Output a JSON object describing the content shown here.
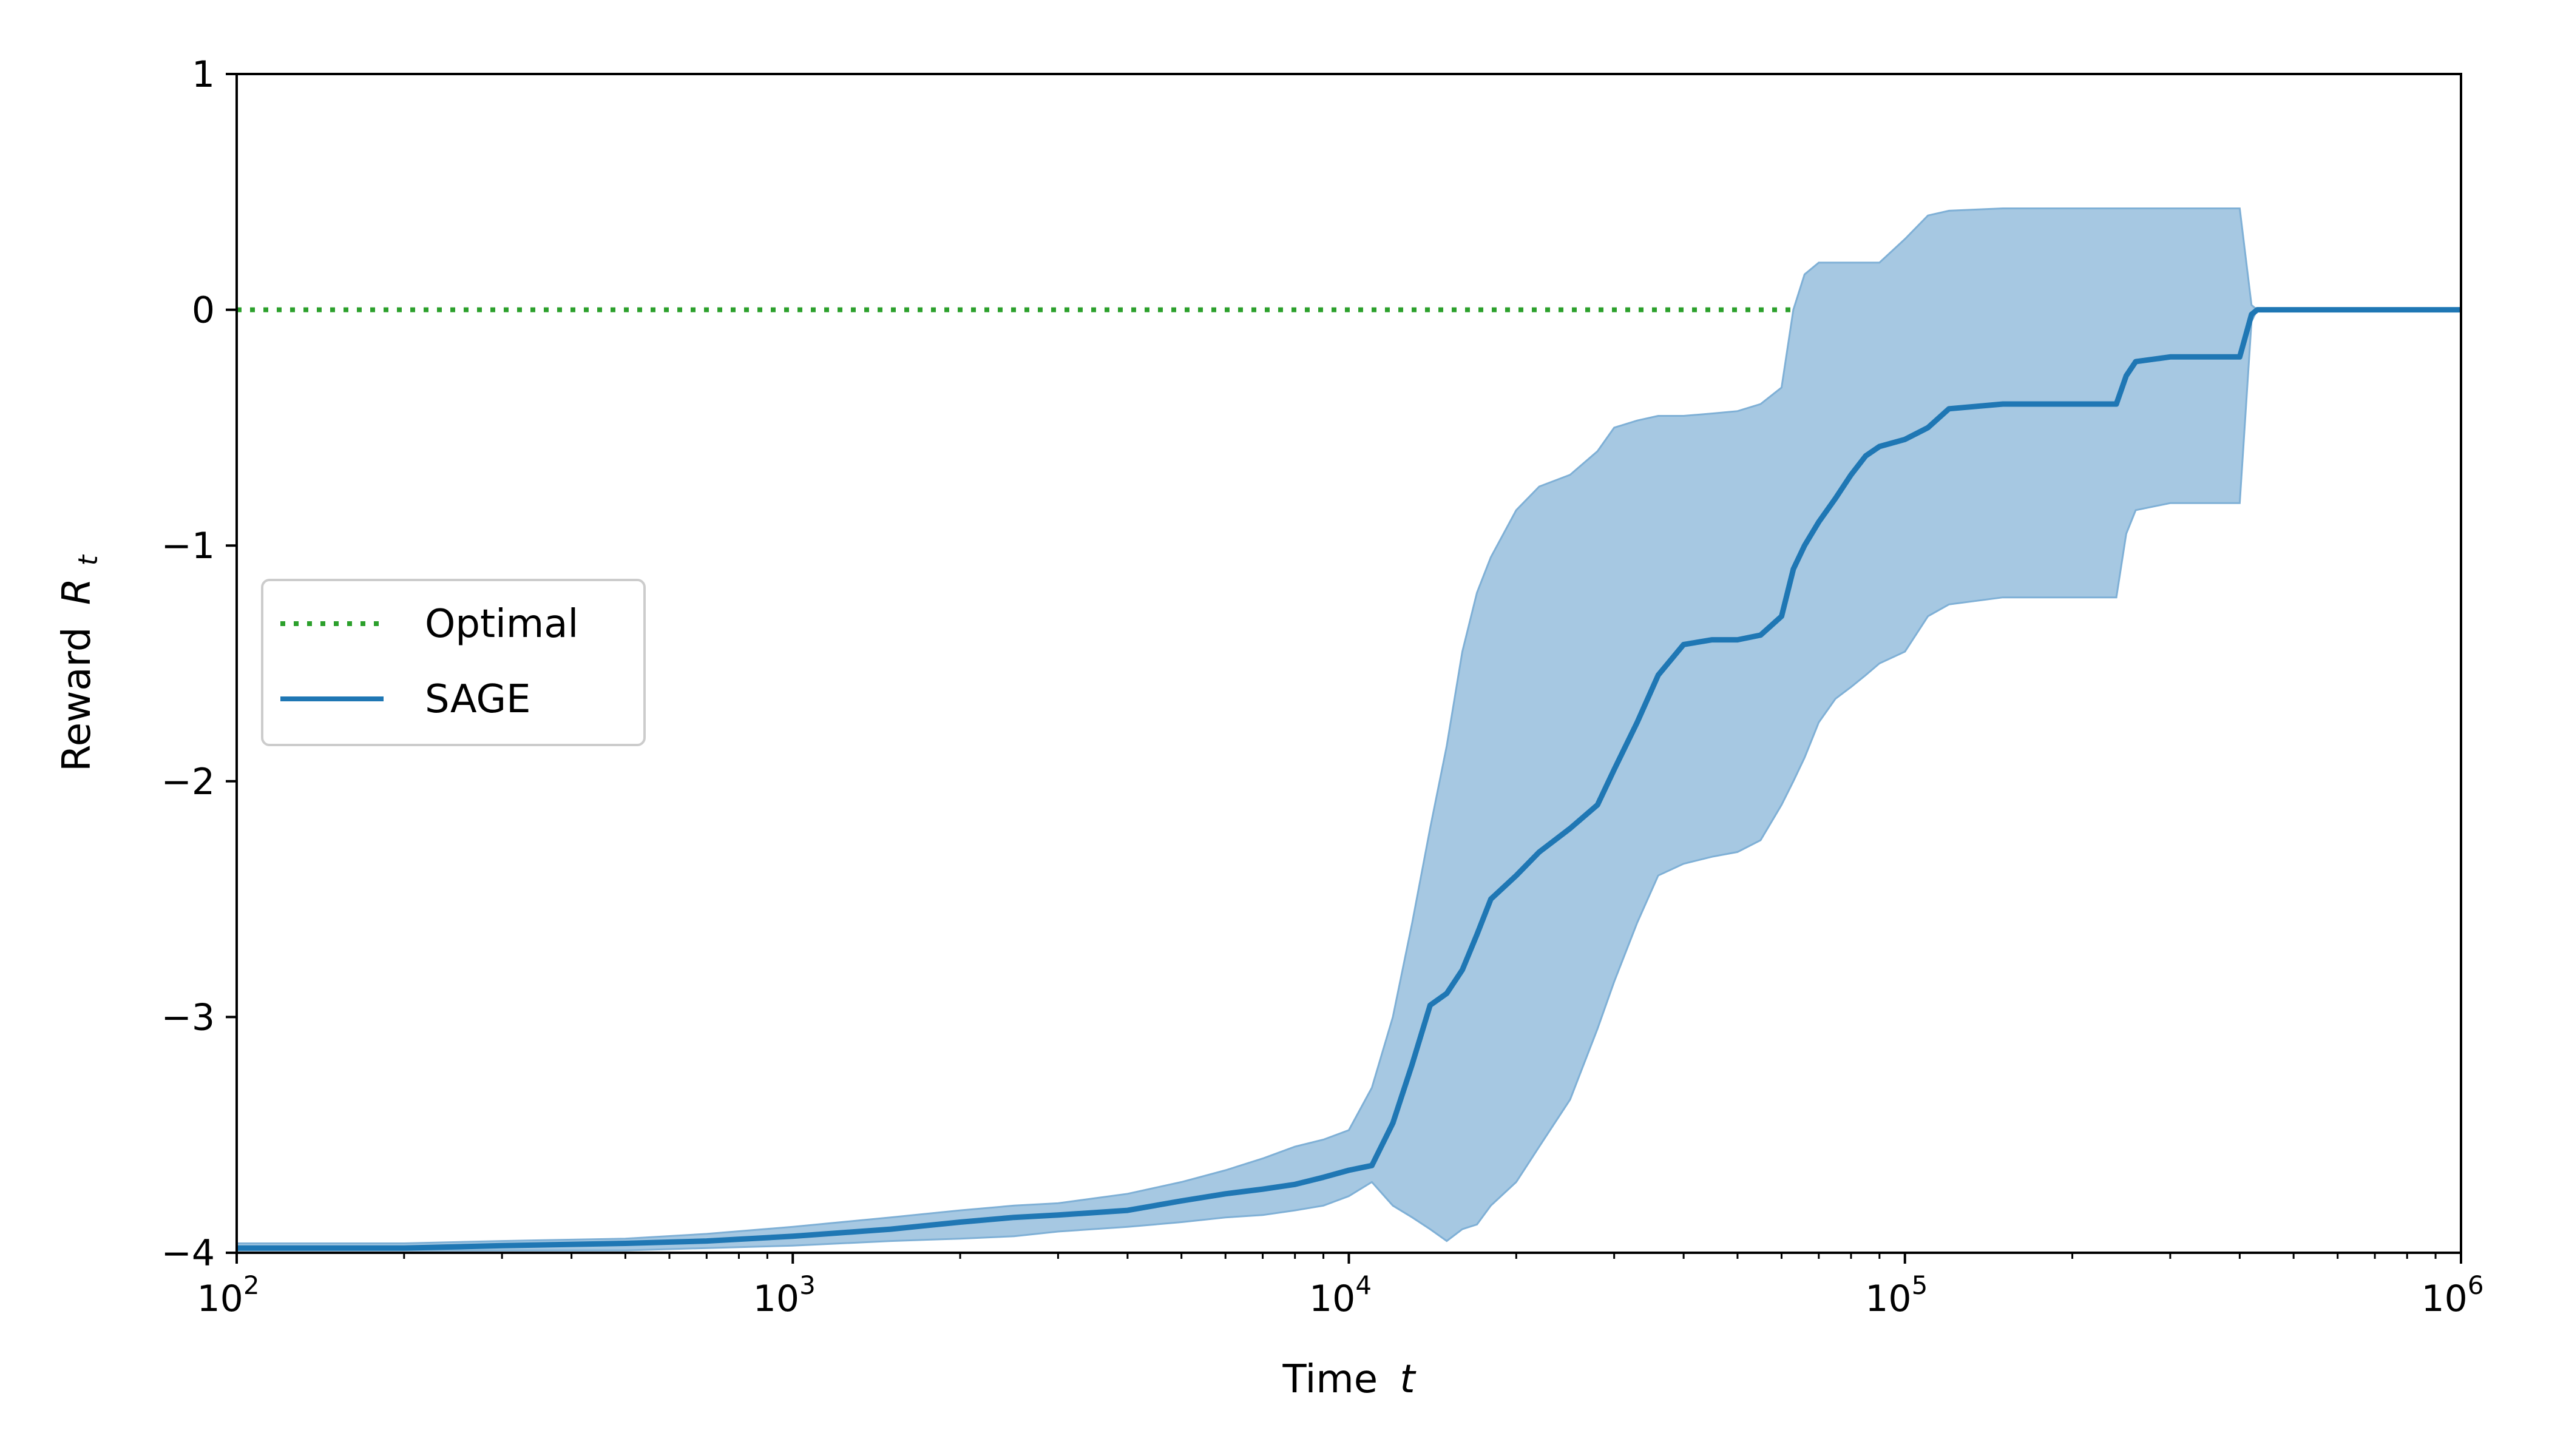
{
  "chart_data": {
    "type": "line",
    "title": "",
    "xlabel": "Time",
    "xlabel_var": "t",
    "ylabel": "Reward",
    "ylabel_var": "R",
    "ylabel_sub": "t",
    "xscale": "log",
    "xlim": [
      100,
      1000000
    ],
    "ylim": [
      -4,
      1
    ],
    "grid": false,
    "legend_placement": "center-left",
    "xticks": [
      {
        "value": 100,
        "base": "10",
        "exp": "2"
      },
      {
        "value": 1000,
        "base": "10",
        "exp": "3"
      },
      {
        "value": 10000,
        "base": "10",
        "exp": "4"
      },
      {
        "value": 100000,
        "base": "10",
        "exp": "5"
      },
      {
        "value": 1000000,
        "base": "10",
        "exp": "6"
      }
    ],
    "yticks": [
      {
        "value": 1,
        "label": "1"
      },
      {
        "value": 0,
        "label": "0"
      },
      {
        "value": -1,
        "label": "−1"
      },
      {
        "value": -2,
        "label": "−2"
      },
      {
        "value": -3,
        "label": "−3"
      },
      {
        "value": -4,
        "label": "−4"
      }
    ],
    "series": [
      {
        "name": "Optimal",
        "style": "dotted",
        "color": "#2ca02c",
        "x": [
          100,
          1000000
        ],
        "y": [
          0,
          0
        ]
      },
      {
        "name": "SAGE",
        "style": "solid",
        "color": "#1f77b4",
        "band_color": "#a6c8e2",
        "x": [
          100,
          150,
          200,
          300,
          500,
          700,
          1000,
          1500,
          2000,
          2500,
          3000,
          4000,
          5000,
          6000,
          7000,
          8000,
          9000,
          10000,
          11000,
          12000,
          13000,
          14000,
          15000,
          16000,
          17000,
          18000,
          20000,
          22000,
          25000,
          28000,
          30000,
          33000,
          36000,
          40000,
          45000,
          50000,
          55000,
          60000,
          63000,
          66000,
          70000,
          75000,
          80000,
          85000,
          90000,
          100000,
          110000,
          120000,
          150000,
          200000,
          240000,
          250000,
          260000,
          300000,
          350000,
          400000,
          420000,
          430000,
          500000,
          700000,
          1000000
        ],
        "y": [
          -3.98,
          -3.98,
          -3.98,
          -3.97,
          -3.96,
          -3.95,
          -3.93,
          -3.9,
          -3.87,
          -3.85,
          -3.84,
          -3.82,
          -3.78,
          -3.75,
          -3.73,
          -3.71,
          -3.68,
          -3.65,
          -3.63,
          -3.45,
          -3.2,
          -2.95,
          -2.9,
          -2.8,
          -2.65,
          -2.5,
          -2.4,
          -2.3,
          -2.2,
          -2.1,
          -1.95,
          -1.75,
          -1.55,
          -1.42,
          -1.4,
          -1.4,
          -1.38,
          -1.3,
          -1.1,
          -1.0,
          -0.9,
          -0.8,
          -0.7,
          -0.62,
          -0.58,
          -0.55,
          -0.5,
          -0.42,
          -0.4,
          -0.4,
          -0.4,
          -0.28,
          -0.22,
          -0.2,
          -0.2,
          -0.2,
          -0.02,
          0,
          0,
          0,
          0
        ],
        "lower": [
          -3.99,
          -3.99,
          -3.99,
          -3.99,
          -3.99,
          -3.98,
          -3.97,
          -3.95,
          -3.94,
          -3.93,
          -3.91,
          -3.89,
          -3.87,
          -3.85,
          -3.84,
          -3.82,
          -3.8,
          -3.76,
          -3.7,
          -3.8,
          -3.85,
          -3.9,
          -3.95,
          -3.9,
          -3.88,
          -3.8,
          -3.7,
          -3.55,
          -3.35,
          -3.05,
          -2.85,
          -2.6,
          -2.4,
          -2.35,
          -2.32,
          -2.3,
          -2.25,
          -2.1,
          -2.0,
          -1.9,
          -1.75,
          -1.65,
          -1.6,
          -1.55,
          -1.5,
          -1.45,
          -1.3,
          -1.25,
          -1.22,
          -1.22,
          -1.22,
          -0.95,
          -0.85,
          -0.82,
          -0.82,
          -0.82,
          -0.05,
          0,
          0,
          0,
          0
        ],
        "upper": [
          -3.96,
          -3.96,
          -3.96,
          -3.95,
          -3.94,
          -3.92,
          -3.89,
          -3.85,
          -3.82,
          -3.8,
          -3.79,
          -3.75,
          -3.7,
          -3.65,
          -3.6,
          -3.55,
          -3.52,
          -3.48,
          -3.3,
          -3.0,
          -2.6,
          -2.2,
          -1.85,
          -1.45,
          -1.2,
          -1.05,
          -0.85,
          -0.75,
          -0.7,
          -0.6,
          -0.5,
          -0.47,
          -0.45,
          -0.45,
          -0.44,
          -0.43,
          -0.4,
          -0.33,
          0.0,
          0.15,
          0.2,
          0.2,
          0.2,
          0.2,
          0.2,
          0.3,
          0.4,
          0.42,
          0.43,
          0.43,
          0.43,
          0.43,
          0.43,
          0.43,
          0.43,
          0.43,
          0.02,
          0,
          0,
          0,
          0
        ]
      }
    ]
  }
}
